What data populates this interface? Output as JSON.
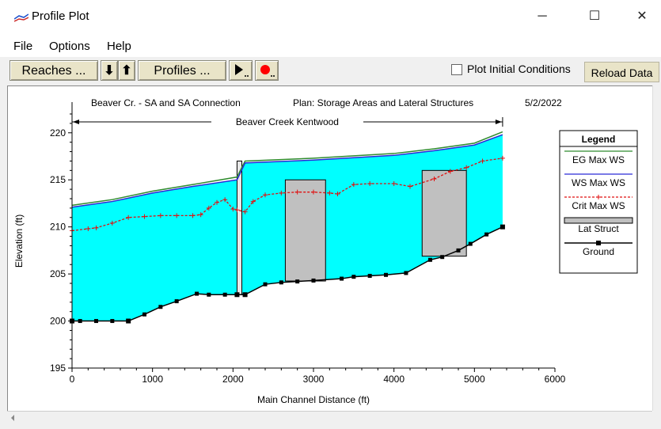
{
  "window": {
    "title": "Profile Plot",
    "minimize": "─",
    "maximize": "☐",
    "close": "✕"
  },
  "menu": {
    "file": "File",
    "options": "Options",
    "help": "Help"
  },
  "toolbar": {
    "reaches": "Reaches ...",
    "down_arrow": "⬇",
    "up_arrow": "⬆",
    "profiles": "Profiles ...",
    "plot_initial_conditions": "Plot Initial Conditions",
    "plot_initial_checked": false,
    "reload_data": "Reload Data"
  },
  "plot": {
    "header_left": "Beaver Cr. - SA and SA Connection",
    "header_plan": "Plan: Storage Areas and Lateral Structures",
    "header_date": "5/2/2022",
    "reach_label": "Beaver Creek Kentwood"
  },
  "chart_data": {
    "type": "line",
    "xlabel": "Main Channel Distance (ft)",
    "ylabel": "Elevation (ft)",
    "xlim": [
      0,
      6000
    ],
    "ylim": [
      195,
      222
    ],
    "x_ticks": [
      0,
      1000,
      2000,
      3000,
      4000,
      5000,
      6000
    ],
    "y_ticks": [
      195,
      200,
      205,
      210,
      215,
      220
    ],
    "legend_title": "Legend",
    "legend_position": "right",
    "colors": {
      "eg": "#2e8b2e",
      "ws": "#2a2ad6",
      "crit": "#e01010",
      "water": "#00ffff",
      "lat": "#c0c0c0",
      "ground": "#000000"
    },
    "series": [
      {
        "name": "EG  Max WS",
        "x": [
          0,
          500,
          1000,
          1500,
          2050,
          2150,
          3000,
          4000,
          4500,
          5000,
          5350
        ],
        "y": [
          212.3,
          212.9,
          213.8,
          214.5,
          215.3,
          217.0,
          217.3,
          217.8,
          218.3,
          218.9,
          220.1
        ]
      },
      {
        "name": "WS  Max WS",
        "x": [
          0,
          500,
          1000,
          1500,
          2050,
          2150,
          3000,
          4000,
          4500,
          5000,
          5350
        ],
        "y": [
          212.1,
          212.7,
          213.6,
          214.3,
          215.0,
          216.8,
          217.1,
          217.6,
          218.1,
          218.7,
          219.8
        ]
      },
      {
        "name": "Crit  Max WS",
        "x": [
          0,
          200,
          300,
          500,
          700,
          900,
          1100,
          1300,
          1500,
          1600,
          1700,
          1800,
          1900,
          2000,
          2050,
          2150,
          2250,
          2400,
          2600,
          2800,
          3000,
          3200,
          3300,
          3500,
          3700,
          4000,
          4200,
          4500,
          4700,
          4900,
          5100,
          5350
        ],
        "y": [
          209.6,
          209.8,
          209.9,
          210.4,
          211.0,
          211.1,
          211.2,
          211.2,
          211.2,
          211.3,
          212.0,
          212.6,
          212.9,
          211.9,
          211.8,
          211.6,
          212.7,
          213.4,
          213.6,
          213.7,
          213.7,
          213.6,
          213.5,
          214.5,
          214.6,
          214.6,
          214.3,
          215.1,
          215.9,
          216.3,
          217.0,
          217.3
        ]
      },
      {
        "name": "Ground",
        "x": [
          0,
          100,
          300,
          500,
          700,
          900,
          1100,
          1300,
          1550,
          1700,
          1900,
          2050,
          2150,
          2400,
          2600,
          2800,
          3000,
          3350,
          3500,
          3700,
          3900,
          4150,
          4450,
          4600,
          4800,
          4950,
          5150,
          5350
        ],
        "y": [
          200.0,
          200.0,
          200.0,
          200.0,
          200.0,
          200.7,
          201.5,
          202.1,
          202.9,
          202.8,
          202.8,
          202.8,
          202.8,
          203.9,
          204.1,
          204.2,
          204.3,
          204.5,
          204.7,
          204.8,
          204.9,
          205.1,
          206.5,
          206.8,
          207.5,
          208.2,
          209.2,
          210.0
        ]
      }
    ],
    "lat_struct": [
      {
        "name": "Lat Struct",
        "x_start": 2650,
        "x_end": 3150,
        "top": 215.0
      },
      {
        "name": "Lat Struct",
        "x_start": 4350,
        "x_end": 4900,
        "top": 216.0
      }
    ],
    "bridge_x": [
      2050,
      2110
    ],
    "bridge_top": 217.0,
    "reach_x": [
      0,
      5350
    ]
  }
}
